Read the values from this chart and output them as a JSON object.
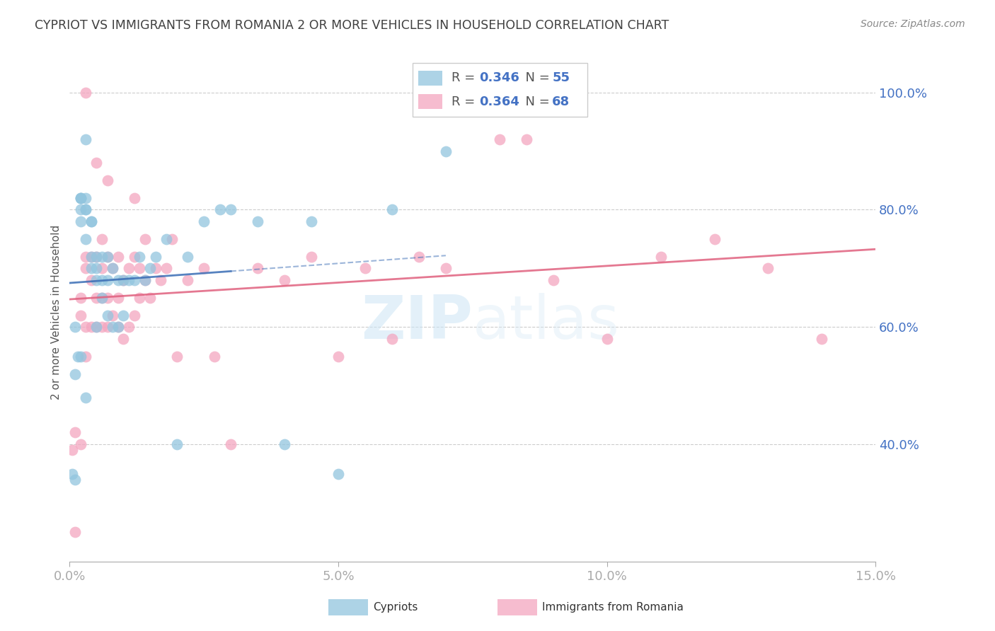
{
  "title": "CYPRIOT VS IMMIGRANTS FROM ROMANIA 2 OR MORE VEHICLES IN HOUSEHOLD CORRELATION CHART",
  "source": "Source: ZipAtlas.com",
  "ylabel": "2 or more Vehicles in Household",
  "xlim": [
    0.0,
    0.15
  ],
  "ylim": [
    0.2,
    1.05
  ],
  "yticks": [
    0.4,
    0.6,
    0.8,
    1.0
  ],
  "ytick_labels": [
    "40.0%",
    "60.0%",
    "80.0%",
    "100.0%"
  ],
  "xticks": [
    0.0,
    0.05,
    0.1,
    0.15
  ],
  "xtick_labels": [
    "0.0%",
    "5.0%",
    "10.0%",
    "15.0%"
  ],
  "cypriot_color": "#92c5de",
  "romania_color": "#f4a6c0",
  "cypriot_line_color": "#3a6db5",
  "romania_line_color": "#e0607e",
  "cypriot_R": 0.346,
  "cypriot_N": 55,
  "romania_R": 0.364,
  "romania_N": 68,
  "background_color": "#ffffff",
  "grid_color": "#cccccc",
  "axis_label_color": "#4472c4",
  "title_color": "#404040",
  "cypriot_x": [
    0.0005,
    0.001,
    0.001,
    0.001,
    0.0015,
    0.002,
    0.002,
    0.002,
    0.002,
    0.002,
    0.003,
    0.003,
    0.003,
    0.003,
    0.003,
    0.004,
    0.004,
    0.004,
    0.004,
    0.005,
    0.005,
    0.005,
    0.005,
    0.006,
    0.006,
    0.006,
    0.007,
    0.007,
    0.007,
    0.008,
    0.008,
    0.009,
    0.009,
    0.01,
    0.01,
    0.011,
    0.012,
    0.013,
    0.014,
    0.015,
    0.016,
    0.018,
    0.02,
    0.022,
    0.025,
    0.028,
    0.03,
    0.035,
    0.04,
    0.045,
    0.05,
    0.06,
    0.07,
    0.002,
    0.003
  ],
  "cypriot_y": [
    0.35,
    0.34,
    0.52,
    0.6,
    0.55,
    0.8,
    0.82,
    0.82,
    0.78,
    0.82,
    0.75,
    0.8,
    0.82,
    0.8,
    0.92,
    0.78,
    0.78,
    0.72,
    0.7,
    0.72,
    0.7,
    0.68,
    0.6,
    0.72,
    0.68,
    0.65,
    0.72,
    0.68,
    0.62,
    0.7,
    0.6,
    0.68,
    0.6,
    0.68,
    0.62,
    0.68,
    0.68,
    0.72,
    0.68,
    0.7,
    0.72,
    0.75,
    0.4,
    0.72,
    0.78,
    0.8,
    0.8,
    0.78,
    0.4,
    0.78,
    0.35,
    0.8,
    0.9,
    0.55,
    0.48
  ],
  "romania_x": [
    0.0005,
    0.001,
    0.001,
    0.002,
    0.002,
    0.002,
    0.003,
    0.003,
    0.003,
    0.003,
    0.004,
    0.004,
    0.004,
    0.005,
    0.005,
    0.005,
    0.006,
    0.006,
    0.006,
    0.006,
    0.007,
    0.007,
    0.007,
    0.008,
    0.008,
    0.009,
    0.009,
    0.009,
    0.01,
    0.01,
    0.011,
    0.011,
    0.012,
    0.012,
    0.013,
    0.013,
    0.014,
    0.014,
    0.015,
    0.016,
    0.017,
    0.018,
    0.019,
    0.02,
    0.022,
    0.025,
    0.027,
    0.03,
    0.035,
    0.04,
    0.045,
    0.05,
    0.055,
    0.06,
    0.065,
    0.07,
    0.08,
    0.085,
    0.09,
    0.1,
    0.11,
    0.12,
    0.13,
    0.14,
    0.003,
    0.005,
    0.007,
    0.012
  ],
  "romania_y": [
    0.39,
    0.42,
    0.25,
    0.62,
    0.65,
    0.4,
    0.6,
    0.55,
    0.7,
    0.72,
    0.6,
    0.68,
    0.72,
    0.6,
    0.65,
    0.72,
    0.6,
    0.65,
    0.7,
    0.75,
    0.6,
    0.65,
    0.72,
    0.62,
    0.7,
    0.6,
    0.65,
    0.72,
    0.58,
    0.68,
    0.6,
    0.7,
    0.62,
    0.72,
    0.65,
    0.7,
    0.68,
    0.75,
    0.65,
    0.7,
    0.68,
    0.7,
    0.75,
    0.55,
    0.68,
    0.7,
    0.55,
    0.4,
    0.7,
    0.68,
    0.72,
    0.55,
    0.7,
    0.58,
    0.72,
    0.7,
    0.92,
    0.92,
    0.68,
    0.58,
    0.72,
    0.75,
    0.7,
    0.58,
    1.0,
    0.88,
    0.85,
    0.82
  ]
}
